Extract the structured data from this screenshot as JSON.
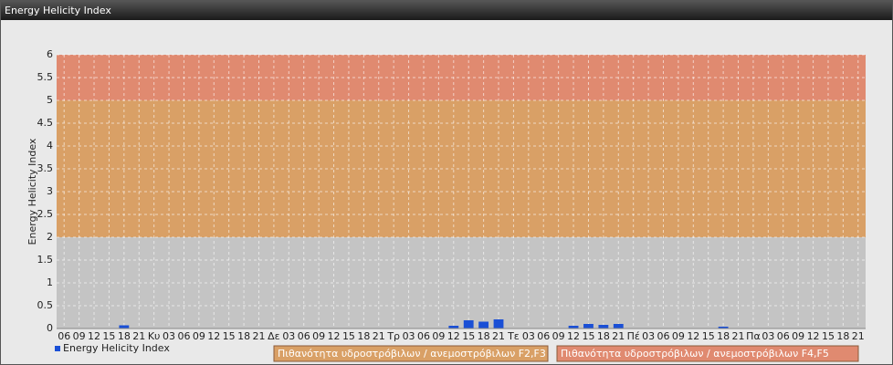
{
  "chart_data": {
    "type": "bar",
    "title": "Energy Helicity Index",
    "ylabel": "Energy Helicity Index",
    "categories": [
      "06",
      "09",
      "12",
      "15",
      "18",
      "21",
      "Κυ",
      "03",
      "06",
      "09",
      "12",
      "15",
      "18",
      "21",
      "Δε",
      "03",
      "06",
      "09",
      "12",
      "15",
      "18",
      "21",
      "Τρ",
      "03",
      "06",
      "09",
      "12",
      "15",
      "18",
      "21",
      "Τε",
      "03",
      "06",
      "09",
      "12",
      "15",
      "18",
      "21",
      "Πέ",
      "03",
      "06",
      "09",
      "12",
      "15",
      "18",
      "21",
      "Πα",
      "03",
      "06",
      "09",
      "12",
      "15",
      "18",
      "21"
    ],
    "series": [
      {
        "name": "Energy Helicity Index",
        "color": "#1a4fd6",
        "values": [
          0.01,
          0.01,
          0.01,
          0.01,
          0.07,
          0.01,
          0.01,
          0.01,
          0.01,
          0.01,
          0.01,
          0.01,
          0.01,
          0.01,
          0.01,
          0.01,
          0.01,
          0.01,
          0.01,
          0.01,
          0.01,
          0.01,
          0.01,
          0.01,
          0.01,
          0.01,
          0.06,
          0.18,
          0.15,
          0.2,
          0.01,
          0.01,
          0.01,
          0.01,
          0.06,
          0.1,
          0.08,
          0.1,
          0.01,
          0.01,
          0.01,
          0.01,
          0.01,
          0.01,
          0.04,
          0.01,
          0.01,
          0.01,
          0.01,
          0.01,
          0.01,
          0.01,
          0.01,
          0.01
        ]
      }
    ],
    "bands": [
      {
        "from": 2,
        "to": 5,
        "color": "#d9a066",
        "label": "Πιθανότητα υδροστρόβιλων / ανεμοστρόβιλων F2,F3"
      },
      {
        "from": 5,
        "to": 6,
        "color": "#e08a70",
        "label": "Πιθανότητα υδροστρόβιλων / ανεμοστρόβιλων F4,F5"
      }
    ],
    "plot_background": "#c4c4c4",
    "ylim": [
      0,
      6
    ],
    "yticks": [
      0,
      0.5,
      1,
      1.5,
      2,
      2.5,
      3,
      3.5,
      4,
      4.5,
      5,
      5.5,
      6
    ],
    "grid": true
  }
}
